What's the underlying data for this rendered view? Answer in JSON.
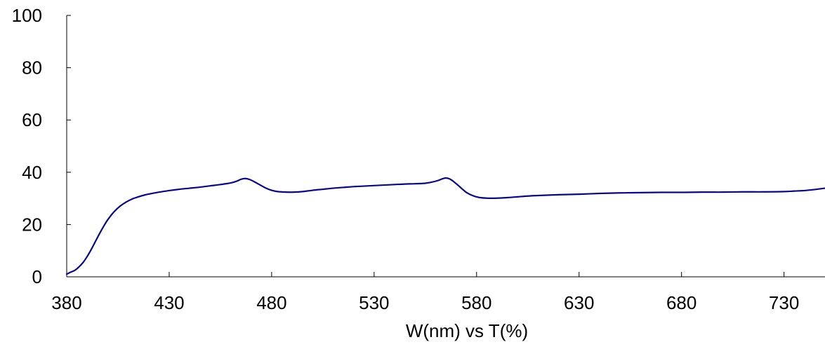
{
  "chart_data": {
    "type": "line",
    "title": "",
    "xlabel": "W(nm) vs T(%)",
    "ylabel": "",
    "xlim": [
      380,
      750
    ],
    "ylim": [
      0,
      100
    ],
    "x_ticks": [
      380,
      430,
      480,
      530,
      580,
      630,
      680,
      730
    ],
    "y_ticks": [
      0,
      20,
      40,
      60,
      80,
      100
    ],
    "grid": false,
    "legend": "none",
    "series": [
      {
        "color": "#0a0a78",
        "points": [
          [
            380,
            1.0
          ],
          [
            382,
            1.8
          ],
          [
            384,
            2.5
          ],
          [
            386,
            3.8
          ],
          [
            388,
            5.5
          ],
          [
            390,
            7.8
          ],
          [
            392,
            10.5
          ],
          [
            394,
            13.5
          ],
          [
            396,
            16.5
          ],
          [
            398,
            19.3
          ],
          [
            400,
            21.8
          ],
          [
            403,
            24.8
          ],
          [
            406,
            27.0
          ],
          [
            409,
            28.6
          ],
          [
            412,
            29.8
          ],
          [
            415,
            30.6
          ],
          [
            418,
            31.3
          ],
          [
            421,
            31.8
          ],
          [
            425,
            32.4
          ],
          [
            430,
            33.0
          ],
          [
            435,
            33.5
          ],
          [
            440,
            33.9
          ],
          [
            445,
            34.3
          ],
          [
            450,
            34.8
          ],
          [
            455,
            35.3
          ],
          [
            460,
            35.9
          ],
          [
            463,
            36.6
          ],
          [
            465,
            37.3
          ],
          [
            467,
            37.6
          ],
          [
            469,
            37.3
          ],
          [
            471,
            36.6
          ],
          [
            474,
            35.3
          ],
          [
            477,
            34.0
          ],
          [
            480,
            33.1
          ],
          [
            483,
            32.6
          ],
          [
            487,
            32.4
          ],
          [
            491,
            32.4
          ],
          [
            495,
            32.6
          ],
          [
            500,
            33.1
          ],
          [
            505,
            33.5
          ],
          [
            510,
            33.9
          ],
          [
            515,
            34.2
          ],
          [
            520,
            34.5
          ],
          [
            525,
            34.7
          ],
          [
            530,
            34.9
          ],
          [
            535,
            35.1
          ],
          [
            540,
            35.3
          ],
          [
            545,
            35.5
          ],
          [
            550,
            35.6
          ],
          [
            555,
            35.8
          ],
          [
            558,
            36.2
          ],
          [
            561,
            36.8
          ],
          [
            563,
            37.4
          ],
          [
            565,
            37.8
          ],
          [
            567,
            37.4
          ],
          [
            569,
            36.3
          ],
          [
            571,
            35.0
          ],
          [
            573,
            33.6
          ],
          [
            575,
            32.3
          ],
          [
            578,
            31.1
          ],
          [
            581,
            30.4
          ],
          [
            585,
            30.1
          ],
          [
            590,
            30.1
          ],
          [
            595,
            30.3
          ],
          [
            600,
            30.6
          ],
          [
            605,
            30.9
          ],
          [
            610,
            31.1
          ],
          [
            620,
            31.4
          ],
          [
            630,
            31.6
          ],
          [
            640,
            31.9
          ],
          [
            650,
            32.1
          ],
          [
            660,
            32.2
          ],
          [
            670,
            32.3
          ],
          [
            680,
            32.3
          ],
          [
            690,
            32.4
          ],
          [
            700,
            32.4
          ],
          [
            710,
            32.5
          ],
          [
            720,
            32.5
          ],
          [
            730,
            32.6
          ],
          [
            735,
            32.8
          ],
          [
            740,
            33.0
          ],
          [
            745,
            33.4
          ],
          [
            750,
            33.9
          ]
        ]
      }
    ]
  }
}
